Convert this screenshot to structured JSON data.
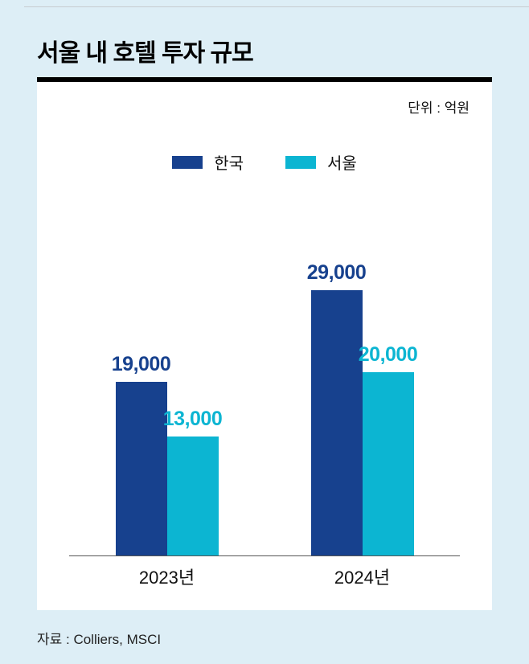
{
  "page": {
    "title": "서울 내 호텔 투자 규모",
    "unit_label": "단위 : 억원",
    "source": "자료 : Colliers, MSCI"
  },
  "colors": {
    "background": "#ddeef6",
    "title_rule": "#000000",
    "korea_series": "#17418e",
    "seoul_series": "#0cb5d2",
    "axis_line": "#555555"
  },
  "chart_data": {
    "type": "bar",
    "title": "서울 내 호텔 투자 규모",
    "unit": "단위 : 억원",
    "categories": [
      "2023년",
      "2024년"
    ],
    "series": [
      {
        "name": "한국",
        "color": "#17418e",
        "values": [
          19000,
          29000
        ],
        "labels": [
          "19,000",
          "29,000"
        ]
      },
      {
        "name": "서울",
        "color": "#0cb5d2",
        "values": [
          13000,
          20000
        ],
        "labels": [
          "13,000",
          "20,000"
        ]
      }
    ],
    "ylim": [
      0,
      29000
    ],
    "xlabel": "",
    "ylabel": "억원",
    "grid": false,
    "legend_position": "top",
    "source": "자료 : Colliers, MSCI"
  }
}
